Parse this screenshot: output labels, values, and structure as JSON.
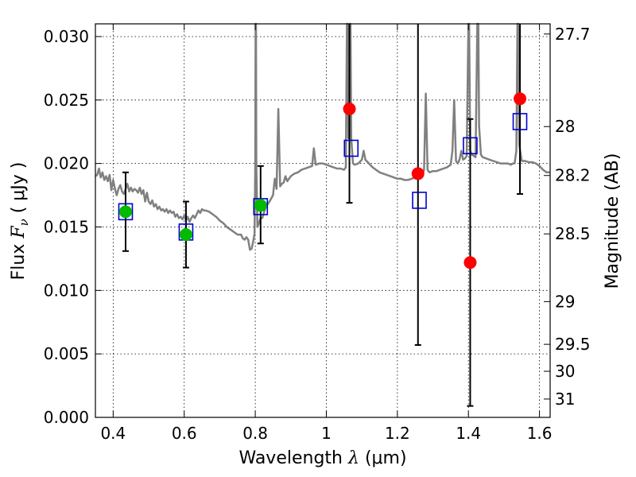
{
  "chart_data": {
    "type": "scatter",
    "xlabel_prefix": "Wavelength",
    "xlabel_symbol": "λ",
    "xlabel_unit": "(μm)",
    "ylabel_prefix": "Flux",
    "ylabel_symbol": "F",
    "ylabel_subscript": "ν",
    "ylabel_unit": "( μJy )",
    "y2label": "Magnitude (AB)",
    "xlim": [
      0.35,
      1.63
    ],
    "ylim": [
      0.0,
      0.031
    ],
    "grid": true,
    "x_ticks": [
      {
        "value": 0.4,
        "label": "0.4"
      },
      {
        "value": 0.6,
        "label": "0.6"
      },
      {
        "value": 0.8,
        "label": "0.8"
      },
      {
        "value": 1.0,
        "label": "1"
      },
      {
        "value": 1.2,
        "label": "1.2"
      },
      {
        "value": 1.4,
        "label": "1.4"
      },
      {
        "value": 1.6,
        "label": "1.6"
      }
    ],
    "y_ticks": [
      {
        "value": 0.0,
        "label": "0.000"
      },
      {
        "value": 0.005,
        "label": "0.005"
      },
      {
        "value": 0.01,
        "label": "0.010"
      },
      {
        "value": 0.015,
        "label": "0.015"
      },
      {
        "value": 0.02,
        "label": "0.020"
      },
      {
        "value": 0.025,
        "label": "0.025"
      },
      {
        "value": 0.03,
        "label": "0.030"
      }
    ],
    "y2_ticks": [
      {
        "value": 27.7,
        "label": "27.7"
      },
      {
        "value": 28.0,
        "label": "28"
      },
      {
        "value": 28.2,
        "label": "28.2"
      },
      {
        "value": 28.5,
        "label": "28.5"
      },
      {
        "value": 29.0,
        "label": "29"
      },
      {
        "value": 29.5,
        "label": "29.5"
      },
      {
        "value": 30.0,
        "label": "30"
      },
      {
        "value": 31.0,
        "label": "31"
      }
    ],
    "model_spectrum": {
      "color": "#808080",
      "points": [
        [
          0.35,
          0.019
        ],
        [
          0.355,
          0.0191
        ],
        [
          0.36,
          0.0196
        ],
        [
          0.365,
          0.0189
        ],
        [
          0.37,
          0.0193
        ],
        [
          0.375,
          0.0187
        ],
        [
          0.38,
          0.019
        ],
        [
          0.385,
          0.0186
        ],
        [
          0.39,
          0.0191
        ],
        [
          0.395,
          0.0179
        ],
        [
          0.4,
          0.0187
        ],
        [
          0.405,
          0.018
        ],
        [
          0.41,
          0.0175
        ],
        [
          0.415,
          0.018
        ],
        [
          0.42,
          0.0183
        ],
        [
          0.425,
          0.0178
        ],
        [
          0.43,
          0.0176
        ],
        [
          0.435,
          0.018
        ],
        [
          0.44,
          0.0184
        ],
        [
          0.445,
          0.0178
        ],
        [
          0.45,
          0.0181
        ],
        [
          0.455,
          0.0178
        ],
        [
          0.46,
          0.018
        ],
        [
          0.465,
          0.0179
        ],
        [
          0.47,
          0.0177
        ],
        [
          0.475,
          0.0181
        ],
        [
          0.48,
          0.0176
        ],
        [
          0.485,
          0.0179
        ],
        [
          0.49,
          0.017
        ],
        [
          0.495,
          0.0177
        ],
        [
          0.5,
          0.017
        ],
        [
          0.505,
          0.0168
        ],
        [
          0.51,
          0.0171
        ],
        [
          0.515,
          0.0166
        ],
        [
          0.52,
          0.0168
        ],
        [
          0.525,
          0.0164
        ],
        [
          0.53,
          0.0166
        ],
        [
          0.535,
          0.0163
        ],
        [
          0.54,
          0.0164
        ],
        [
          0.545,
          0.0162
        ],
        [
          0.55,
          0.0164
        ],
        [
          0.555,
          0.0161
        ],
        [
          0.56,
          0.0163
        ],
        [
          0.565,
          0.0161
        ],
        [
          0.57,
          0.0162
        ],
        [
          0.575,
          0.0158
        ],
        [
          0.58,
          0.016
        ],
        [
          0.585,
          0.0157
        ],
        [
          0.59,
          0.0158
        ],
        [
          0.595,
          0.0156
        ],
        [
          0.6,
          0.0159
        ],
        [
          0.605,
          0.0155
        ],
        [
          0.61,
          0.0158
        ],
        [
          0.615,
          0.0154
        ],
        [
          0.62,
          0.0157
        ],
        [
          0.625,
          0.0159
        ],
        [
          0.63,
          0.0157
        ],
        [
          0.635,
          0.016
        ],
        [
          0.64,
          0.0163
        ],
        [
          0.645,
          0.0161
        ],
        [
          0.65,
          0.0164
        ],
        [
          0.655,
          0.0163
        ],
        [
          0.66,
          0.0163
        ],
        [
          0.67,
          0.0162
        ],
        [
          0.68,
          0.016
        ],
        [
          0.69,
          0.0158
        ],
        [
          0.7,
          0.0155
        ],
        [
          0.71,
          0.0153
        ],
        [
          0.72,
          0.015
        ],
        [
          0.73,
          0.0148
        ],
        [
          0.74,
          0.0146
        ],
        [
          0.75,
          0.0144
        ],
        [
          0.76,
          0.0144
        ],
        [
          0.765,
          0.0141
        ],
        [
          0.77,
          0.014
        ],
        [
          0.775,
          0.0142
        ],
        [
          0.78,
          0.014
        ],
        [
          0.785,
          0.0132
        ],
        [
          0.79,
          0.0133
        ],
        [
          0.795,
          0.014
        ],
        [
          0.798,
          0.0145
        ],
        [
          0.8,
          0.02
        ],
        [
          0.801,
          0.031
        ],
        [
          0.802,
          0.031
        ],
        [
          0.803,
          0.02
        ],
        [
          0.806,
          0.015
        ],
        [
          0.81,
          0.0153
        ],
        [
          0.815,
          0.0157
        ],
        [
          0.82,
          0.0157
        ],
        [
          0.825,
          0.0162
        ],
        [
          0.83,
          0.0166
        ],
        [
          0.84,
          0.017
        ],
        [
          0.85,
          0.0175
        ],
        [
          0.855,
          0.0188
        ],
        [
          0.86,
          0.018
        ],
        [
          0.865,
          0.0243
        ],
        [
          0.87,
          0.0182
        ],
        [
          0.875,
          0.0184
        ],
        [
          0.88,
          0.0185
        ],
        [
          0.885,
          0.019
        ],
        [
          0.89,
          0.0186
        ],
        [
          0.895,
          0.0188
        ],
        [
          0.9,
          0.019
        ],
        [
          0.91,
          0.0192
        ],
        [
          0.92,
          0.0193
        ],
        [
          0.93,
          0.0195
        ],
        [
          0.94,
          0.0196
        ],
        [
          0.95,
          0.0197
        ],
        [
          0.96,
          0.0198
        ],
        [
          0.965,
          0.0212
        ],
        [
          0.97,
          0.0199
        ],
        [
          0.98,
          0.02
        ],
        [
          0.99,
          0.02
        ],
        [
          1.0,
          0.0199
        ],
        [
          1.01,
          0.0198
        ],
        [
          1.02,
          0.0197
        ],
        [
          1.03,
          0.0196
        ],
        [
          1.04,
          0.0196
        ],
        [
          1.05,
          0.0195
        ],
        [
          1.055,
          0.0197
        ],
        [
          1.058,
          0.031
        ],
        [
          1.06,
          0.031
        ],
        [
          1.062,
          0.022
        ],
        [
          1.066,
          0.031
        ],
        [
          1.068,
          0.031
        ],
        [
          1.07,
          0.022
        ],
        [
          1.075,
          0.02
        ],
        [
          1.08,
          0.0199
        ],
        [
          1.09,
          0.02
        ],
        [
          1.1,
          0.0203
        ],
        [
          1.105,
          0.021
        ],
        [
          1.11,
          0.0203
        ],
        [
          1.12,
          0.02
        ],
        [
          1.13,
          0.0197
        ],
        [
          1.14,
          0.0195
        ],
        [
          1.15,
          0.0193
        ],
        [
          1.16,
          0.0192
        ],
        [
          1.17,
          0.0191
        ],
        [
          1.18,
          0.019
        ],
        [
          1.19,
          0.0189
        ],
        [
          1.2,
          0.0188
        ],
        [
          1.21,
          0.0188
        ],
        [
          1.22,
          0.0187
        ],
        [
          1.23,
          0.0187
        ],
        [
          1.24,
          0.0188
        ],
        [
          1.25,
          0.0189
        ],
        [
          1.26,
          0.019
        ],
        [
          1.27,
          0.0191
        ],
        [
          1.275,
          0.0195
        ],
        [
          1.28,
          0.0255
        ],
        [
          1.285,
          0.0195
        ],
        [
          1.29,
          0.0193
        ],
        [
          1.3,
          0.0194
        ],
        [
          1.31,
          0.0194
        ],
        [
          1.32,
          0.0195
        ],
        [
          1.33,
          0.0196
        ],
        [
          1.34,
          0.0197
        ],
        [
          1.35,
          0.0199
        ],
        [
          1.355,
          0.021
        ],
        [
          1.36,
          0.025
        ],
        [
          1.365,
          0.0202
        ],
        [
          1.37,
          0.02
        ],
        [
          1.375,
          0.0203
        ],
        [
          1.38,
          0.021
        ],
        [
          1.385,
          0.0203
        ],
        [
          1.39,
          0.0204
        ],
        [
          1.395,
          0.0206
        ],
        [
          1.4,
          0.031
        ],
        [
          1.402,
          0.031
        ],
        [
          1.405,
          0.021
        ],
        [
          1.41,
          0.0207
        ],
        [
          1.42,
          0.0205
        ],
        [
          1.425,
          0.031
        ],
        [
          1.428,
          0.031
        ],
        [
          1.43,
          0.023
        ],
        [
          1.435,
          0.0207
        ],
        [
          1.44,
          0.0205
        ],
        [
          1.45,
          0.0204
        ],
        [
          1.46,
          0.0203
        ],
        [
          1.47,
          0.0202
        ],
        [
          1.48,
          0.0201
        ],
        [
          1.49,
          0.02
        ],
        [
          1.5,
          0.02
        ],
        [
          1.51,
          0.02
        ],
        [
          1.52,
          0.0199
        ],
        [
          1.525,
          0.02
        ],
        [
          1.53,
          0.02
        ],
        [
          1.535,
          0.021
        ],
        [
          1.538,
          0.031
        ],
        [
          1.54,
          0.031
        ],
        [
          1.543,
          0.0215
        ],
        [
          1.55,
          0.0202
        ],
        [
          1.56,
          0.0202
        ],
        [
          1.57,
          0.0201
        ],
        [
          1.58,
          0.0201
        ],
        [
          1.59,
          0.02
        ],
        [
          1.6,
          0.0198
        ],
        [
          1.61,
          0.0195
        ],
        [
          1.62,
          0.0193
        ],
        [
          1.63,
          0.0193
        ]
      ]
    },
    "series": [
      {
        "marker": "square-open",
        "color": "#0000cc",
        "points": [
          {
            "x": 0.435,
            "y": 0.0162
          },
          {
            "x": 0.605,
            "y": 0.0146
          },
          {
            "x": 0.815,
            "y": 0.0166
          },
          {
            "x": 1.07,
            "y": 0.0212
          },
          {
            "x": 1.262,
            "y": 0.0171
          },
          {
            "x": 1.405,
            "y": 0.0214
          },
          {
            "x": 1.545,
            "y": 0.0233
          }
        ]
      },
      {
        "marker": "circle-filled",
        "color": "#00bb00",
        "points": [
          {
            "x": 0.435,
            "y": 0.0162,
            "yerr_low": 0.0131,
            "yerr_high": 0.0193
          },
          {
            "x": 0.605,
            "y": 0.0144,
            "yerr_low": 0.0118,
            "yerr_high": 0.017
          },
          {
            "x": 0.815,
            "y": 0.0167,
            "yerr_low": 0.0137,
            "yerr_high": 0.0198
          }
        ]
      },
      {
        "marker": "circle-filled",
        "color": "#ff0000",
        "points": [
          {
            "x": 1.065,
            "y": 0.0243,
            "yerr_low": 0.0169,
            "yerr_high": 0.031
          },
          {
            "x": 1.258,
            "y": 0.0192,
            "yerr_low": 0.0057,
            "yerr_high": 0.031
          },
          {
            "x": 1.405,
            "y": 0.0122,
            "yerr_low": 0.0009,
            "yerr_high": 0.0235
          },
          {
            "x": 1.545,
            "y": 0.0251,
            "yerr_low": 0.0176,
            "yerr_high": 0.031
          }
        ]
      }
    ]
  }
}
